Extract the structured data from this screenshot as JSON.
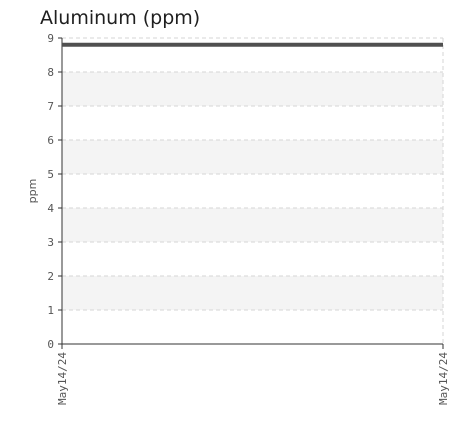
{
  "chart_data": {
    "type": "line",
    "title": "Aluminum (ppm)",
    "xlabel": "",
    "ylabel": "ppm",
    "x": [
      "May14/24",
      "May14/24"
    ],
    "series": [
      {
        "values": [
          8.8,
          8.8
        ]
      }
    ],
    "ylim": [
      0,
      9
    ],
    "yticks": [
      0,
      1,
      2,
      3,
      4,
      5,
      6,
      7,
      8,
      9
    ],
    "grid": true,
    "legend": "none",
    "colors": {
      "line": "#505050",
      "band": "#f4f4f4",
      "grid": "#d6d6d6",
      "axis": "#333333",
      "text": "#555555"
    }
  }
}
